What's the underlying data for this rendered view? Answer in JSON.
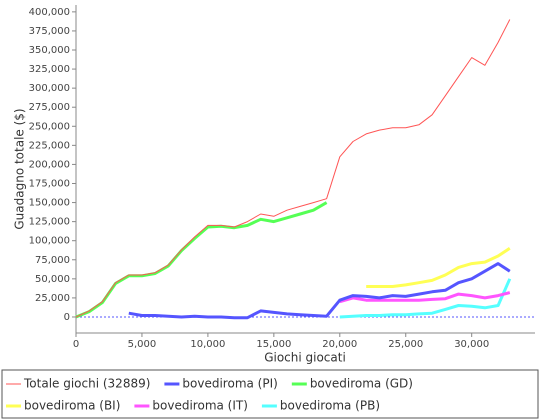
{
  "chart_data": {
    "type": "line",
    "x_label": "Giochi giocati",
    "y_label": "Guadagno totale  ($)",
    "x": [
      0,
      1000,
      2000,
      3000,
      4000,
      5000,
      6000,
      7000,
      8000,
      9000,
      10000,
      11000,
      12000,
      13000,
      14000,
      15000,
      16000,
      17000,
      18000,
      19000,
      20000,
      21000,
      22000,
      23000,
      24000,
      25000,
      26000,
      27000,
      28000,
      29000,
      30000,
      31000,
      32000,
      32889
    ],
    "series": [
      {
        "name": "Totale giochi  (32889)",
        "color": "#ff5555",
        "line_width": 1,
        "values": [
          0,
          8000,
          20000,
          45000,
          55000,
          55000,
          58000,
          68000,
          88000,
          105000,
          120000,
          120000,
          118000,
          125000,
          135000,
          132000,
          140000,
          145000,
          150000,
          155000,
          210000,
          230000,
          240000,
          245000,
          248000,
          248000,
          252000,
          265000,
          290000,
          315000,
          340000,
          330000,
          360000,
          390000
        ]
      },
      {
        "name": "bovediroma (PI)",
        "color": "#5555ff",
        "line_width": 3,
        "values": [
          null,
          null,
          null,
          null,
          5000,
          2000,
          2000,
          1000,
          0,
          1000,
          0,
          0,
          -1000,
          -1000,
          8000,
          6000,
          4000,
          3000,
          2000,
          1000,
          22000,
          28000,
          27000,
          25000,
          28000,
          27000,
          30000,
          33000,
          35000,
          45000,
          50000,
          60000,
          70000,
          60000
        ]
      },
      {
        "name": "bovediroma (GD)",
        "color": "#55ff55",
        "line_width": 3,
        "values": [
          0,
          7000,
          19000,
          44000,
          54000,
          54000,
          57000,
          67000,
          87000,
          103000,
          118000,
          119000,
          117000,
          120000,
          128000,
          125000,
          130000,
          135000,
          140000,
          150000,
          null,
          null,
          null,
          null,
          null,
          null,
          null,
          null,
          null,
          null,
          null,
          null,
          null,
          null
        ]
      },
      {
        "name": "bovediroma (BI)",
        "color": "#ffff55",
        "line_width": 3,
        "values": [
          null,
          null,
          null,
          null,
          null,
          null,
          null,
          null,
          null,
          null,
          null,
          null,
          null,
          null,
          null,
          null,
          null,
          null,
          null,
          null,
          null,
          null,
          40000,
          40000,
          40000,
          42000,
          45000,
          48000,
          55000,
          65000,
          70000,
          72000,
          80000,
          90000
        ]
      },
      {
        "name": "bovediroma (IT)",
        "color": "#ff55ff",
        "line_width": 3,
        "values": [
          null,
          null,
          null,
          null,
          null,
          null,
          null,
          null,
          null,
          null,
          null,
          null,
          null,
          null,
          null,
          null,
          null,
          null,
          null,
          null,
          20000,
          25000,
          22000,
          22000,
          22000,
          22000,
          22000,
          23000,
          24000,
          30000,
          28000,
          25000,
          28000,
          32000
        ]
      },
      {
        "name": "bovediroma (PB)",
        "color": "#55ffff",
        "line_width": 3,
        "values": [
          null,
          null,
          null,
          null,
          null,
          null,
          null,
          null,
          null,
          null,
          null,
          null,
          null,
          null,
          null,
          null,
          null,
          null,
          null,
          null,
          0,
          1000,
          2000,
          2000,
          3000,
          3000,
          4000,
          5000,
          10000,
          15000,
          14000,
          12000,
          15000,
          50000
        ]
      }
    ],
    "xlim": [
      0,
      34800
    ],
    "ylim": [
      -21000,
      409000
    ],
    "xticks": [
      0,
      {
        "value": 5000,
        "label": "5,000"
      },
      {
        "value": 10000,
        "label": "10,000"
      },
      {
        "value": 15000,
        "label": "15,000"
      },
      {
        "value": 20000,
        "label": "20,000"
      },
      {
        "value": 25000,
        "label": "25,000"
      },
      {
        "value": 30000,
        "label": "30,000"
      }
    ],
    "yticks": [
      0,
      {
        "value": 25000,
        "label": "25,000"
      },
      {
        "value": 50000,
        "label": "50,000"
      },
      {
        "value": 75000,
        "label": "75,000"
      },
      {
        "value": 100000,
        "label": "100,000"
      },
      {
        "value": 125000,
        "label": "125,000"
      },
      {
        "value": 150000,
        "label": "150,000"
      },
      {
        "value": 175000,
        "label": "175,000"
      },
      {
        "value": 200000,
        "label": "200,000"
      },
      {
        "value": 225000,
        "label": "225,000"
      },
      {
        "value": 250000,
        "label": "250,000"
      },
      {
        "value": 275000,
        "label": "275,000"
      },
      {
        "value": 300000,
        "label": "300,000"
      },
      {
        "value": 325000,
        "label": "325,000"
      },
      {
        "value": 350000,
        "label": "350,000"
      },
      {
        "value": 375000,
        "label": "375,000"
      },
      {
        "value": 400000,
        "label": "400,000"
      }
    ],
    "zero_line": true,
    "grid": false,
    "legend": "bottom"
  }
}
